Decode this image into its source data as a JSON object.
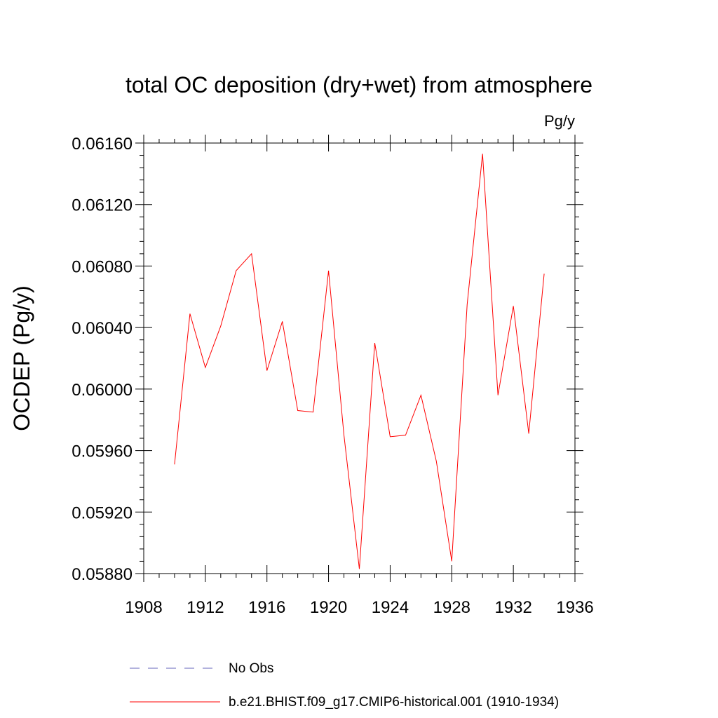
{
  "chart_data": {
    "type": "line",
    "title": "total OC deposition (dry+wet) from atmosphere",
    "units_label": "Pg/y",
    "ylabel": "OCDEP  (Pg/y)",
    "xlabel": "",
    "xlim": [
      1908,
      1936
    ],
    "ylim": [
      0.0588,
      0.0616
    ],
    "x_ticks": [
      1908,
      1912,
      1916,
      1920,
      1924,
      1928,
      1932,
      1936
    ],
    "x_tick_labels": [
      "1908",
      "1912",
      "1916",
      "1920",
      "1924",
      "1928",
      "1932",
      "1936"
    ],
    "y_ticks": [
      0.0588,
      0.0592,
      0.0596,
      0.06,
      0.0604,
      0.0608,
      0.0612,
      0.0616
    ],
    "y_tick_labels": [
      "0.05880",
      "0.05920",
      "0.05960",
      "0.06000",
      "0.06040",
      "0.06080",
      "0.06120",
      "0.06160"
    ],
    "grid": false,
    "legend_position": "bottom",
    "series": [
      {
        "name": "b.e21.BHIST.f09_g17.CMIP6-historical.001 (1910-1934)",
        "color": "#ff0000",
        "style": "solid",
        "x": [
          1910,
          1911,
          1912,
          1913,
          1914,
          1915,
          1916,
          1917,
          1918,
          1919,
          1920,
          1921,
          1922,
          1923,
          1924,
          1925,
          1926,
          1927,
          1928,
          1929,
          1930,
          1931,
          1932,
          1933,
          1934
        ],
        "values": [
          0.05951,
          0.06049,
          0.06014,
          0.06041,
          0.06077,
          0.06088,
          0.06012,
          0.06044,
          0.05986,
          0.05985,
          0.06077,
          0.0597,
          0.05883,
          0.0603,
          0.05969,
          0.0597,
          0.05996,
          0.05953,
          0.05888,
          0.06055,
          0.06153,
          0.05996,
          0.06054,
          0.05971,
          0.06075
        ]
      }
    ],
    "legend": [
      {
        "label": "No Obs",
        "color": "#6666bb",
        "style": "dashed"
      },
      {
        "label": "b.e21.BHIST.f09_g17.CMIP6-historical.001 (1910-1934)",
        "color": "#ff0000",
        "style": "solid"
      }
    ]
  }
}
